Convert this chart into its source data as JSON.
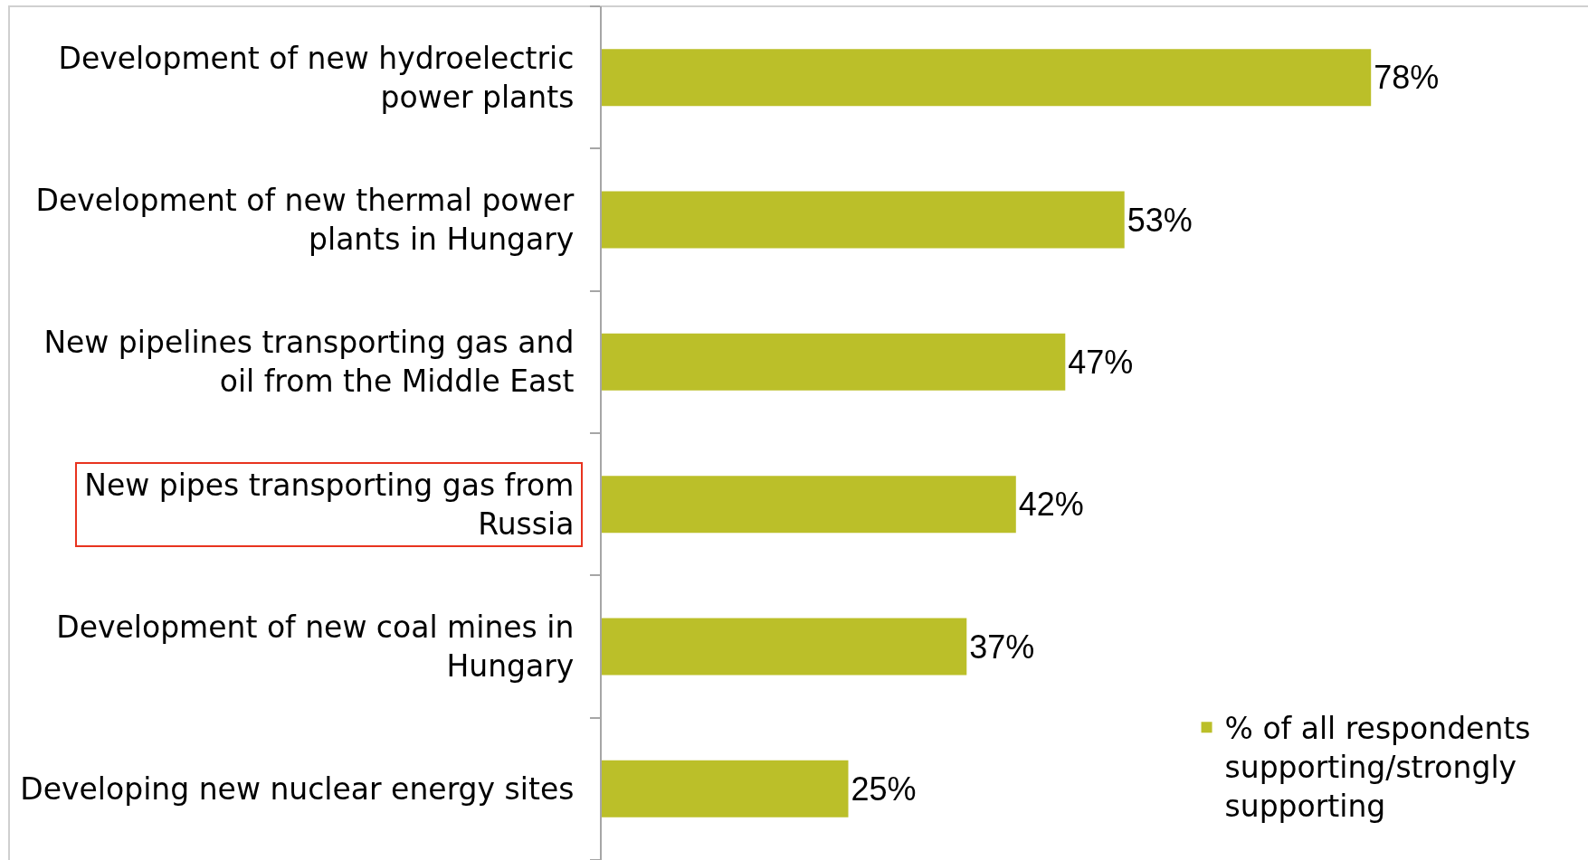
{
  "chart_data": {
    "type": "bar",
    "orientation": "horizontal",
    "categories": [
      "Development of new hydroelectric power plants",
      "Development of new thermal power plants in Hungary",
      "New pipelines transporting gas and oil from the Middle East",
      "New pipes transporting gas from Russia",
      "Development of new coal mines in Hungary",
      "Developing new nuclear energy sites"
    ],
    "series": [
      {
        "name": "% of all respondents supporting/strongly supporting",
        "color": "#bbbf29",
        "values": [
          78,
          53,
          47,
          42,
          37,
          25
        ],
        "value_labels": [
          "78%",
          "53%",
          "47%",
          "42%",
          "37%",
          "25%"
        ]
      }
    ],
    "xlim": [
      0,
      100
    ],
    "tick_labels": "y",
    "legend": "bottom right"
  }
}
